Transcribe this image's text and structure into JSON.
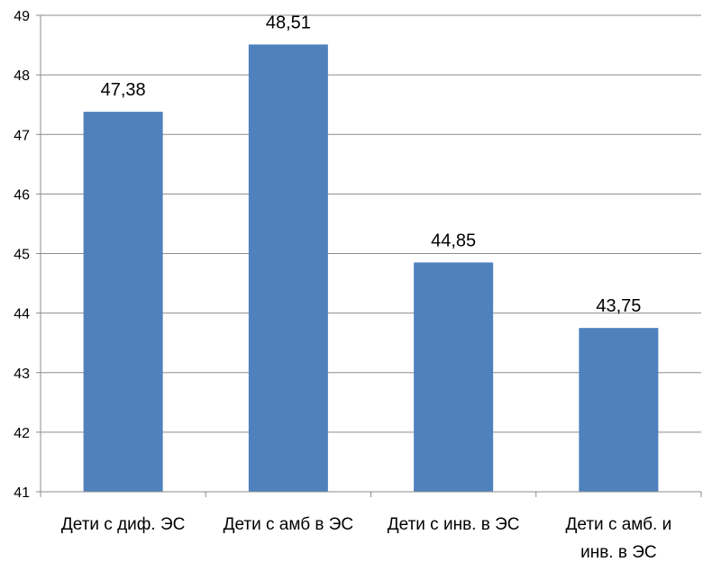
{
  "chart_data": {
    "type": "bar",
    "categories": [
      "Дети с диф. ЭС",
      "Дети с амб в ЭС",
      "Дети с инв. в ЭС",
      "Дети с амб. и инв. в ЭС"
    ],
    "category_lines": [
      [
        "Дети с диф. ЭС"
      ],
      [
        "Дети с амб в ЭС"
      ],
      [
        "Дети с инв. в ЭС"
      ],
      [
        "Дети с амб. и",
        "инв. в ЭС"
      ]
    ],
    "values": [
      47.38,
      48.51,
      44.85,
      43.75
    ],
    "data_labels": [
      "47,38",
      "48,51",
      "44,85",
      "43,75"
    ],
    "ylim": [
      41,
      49
    ],
    "yticks": [
      41,
      42,
      43,
      44,
      45,
      46,
      47,
      48,
      49
    ],
    "title": "",
    "xlabel": "",
    "ylabel": "",
    "grid": true,
    "legend": "none",
    "colors": {
      "bar": "#4f81bd",
      "grid": "#8c8c8c",
      "axis": "#8c8c8c"
    }
  }
}
